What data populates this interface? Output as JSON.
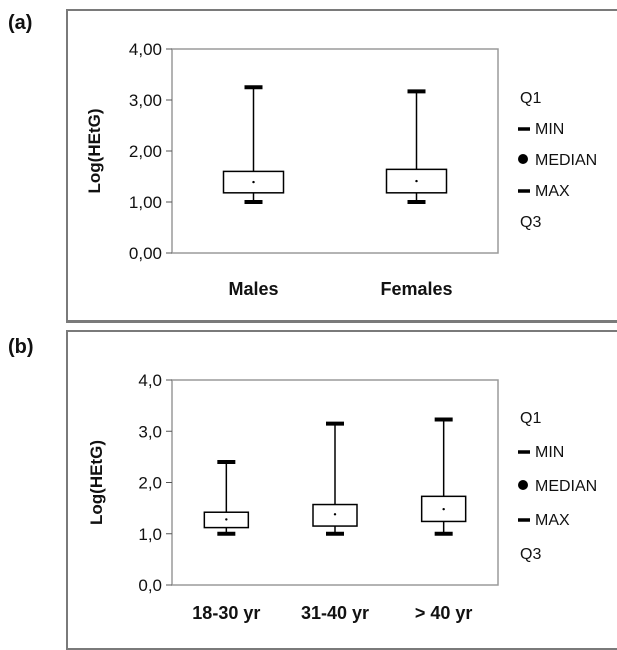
{
  "chart_data": [
    {
      "type": "box",
      "panel_label": "(a)",
      "ylabel": "Log(HEtG)",
      "ylim": [
        0,
        4
      ],
      "yticks": [
        "0,00",
        "1,00",
        "2,00",
        "3,00",
        "4,00"
      ],
      "categories": [
        "Males",
        "Females"
      ],
      "boxes": [
        {
          "min": 1.0,
          "q1": 1.18,
          "median": 1.39,
          "q3": 1.6,
          "max": 3.25
        },
        {
          "min": 1.0,
          "q1": 1.18,
          "median": 1.41,
          "q3": 1.64,
          "max": 3.17
        }
      ],
      "legend": [
        "Q1",
        "MIN",
        "MEDIAN",
        "MAX",
        "Q3"
      ],
      "grid": false
    },
    {
      "type": "box",
      "panel_label": "(b)",
      "ylabel": "Log(HEtG)",
      "ylim": [
        0,
        4
      ],
      "yticks": [
        "0,0",
        "1,0",
        "2,0",
        "3,0",
        "4,0"
      ],
      "categories": [
        "18-30 yr",
        "31-40 yr",
        "> 40 yr"
      ],
      "boxes": [
        {
          "min": 1.0,
          "q1": 1.12,
          "median": 1.28,
          "q3": 1.42,
          "max": 2.4
        },
        {
          "min": 1.0,
          "q1": 1.15,
          "median": 1.38,
          "q3": 1.57,
          "max": 3.15
        },
        {
          "min": 1.0,
          "q1": 1.24,
          "median": 1.48,
          "q3": 1.73,
          "max": 3.23
        }
      ],
      "legend": [
        "Q1",
        "MIN",
        "MEDIAN",
        "MAX",
        "Q3"
      ],
      "grid": false
    }
  ]
}
